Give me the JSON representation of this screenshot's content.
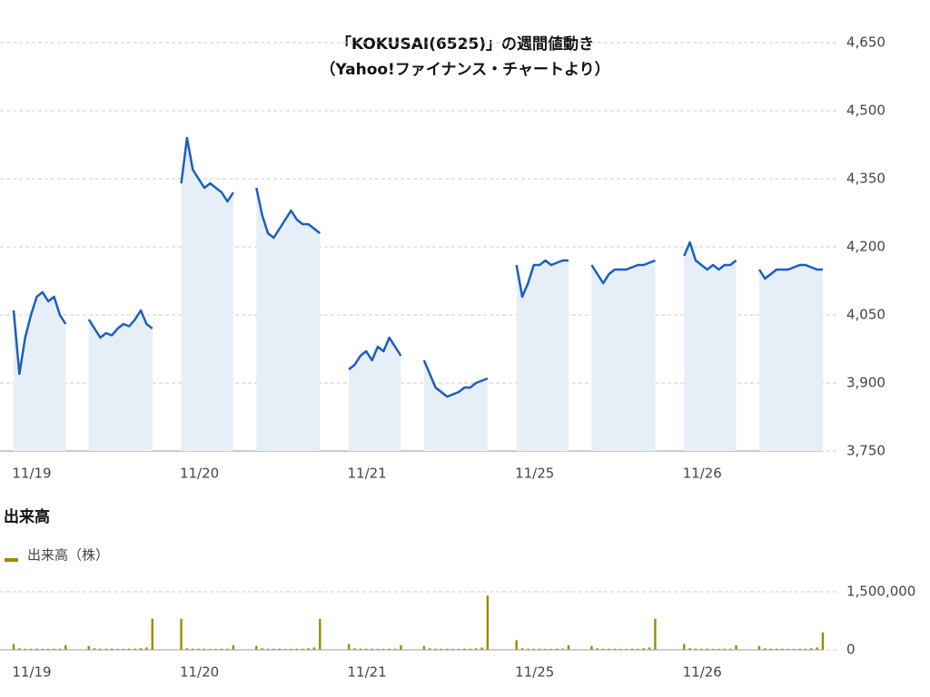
{
  "chart_data": [
    {
      "type": "area",
      "title": "「KOKUSAI(6525)」の週間値動き",
      "subtitle": "（Yahoo!ファイナンス・チャートより）",
      "color": "#1a5fc0",
      "fill": "#e6eef8",
      "grid": true,
      "ylim": [
        3750,
        4650
      ],
      "yticks": [
        {
          "value": 3750,
          "label": "3,750"
        },
        {
          "value": 3900,
          "label": "3,900"
        },
        {
          "value": 4050,
          "label": "4,050"
        },
        {
          "value": 4200,
          "label": "4,200"
        },
        {
          "value": 4350,
          "label": "4,350"
        },
        {
          "value": 4500,
          "label": "4,500"
        },
        {
          "value": 4650,
          "label": "4,650"
        }
      ],
      "categories": [
        "11/19",
        null,
        null,
        null,
        null,
        null,
        null,
        null,
        null,
        null,
        null,
        null,
        null,
        null,
        null,
        null,
        null,
        null,
        null,
        null,
        null,
        null,
        null,
        null,
        null,
        null,
        null,
        null,
        null,
        "11/20",
        null,
        null,
        null,
        null,
        null,
        null,
        null,
        null,
        null,
        null,
        null,
        null,
        null,
        null,
        null,
        null,
        null,
        null,
        null,
        null,
        null,
        null,
        null,
        null,
        null,
        null,
        null,
        null,
        "11/21",
        null,
        null,
        null,
        null,
        null,
        null,
        null,
        null,
        null,
        null,
        null,
        null,
        null,
        null,
        null,
        null,
        null,
        null,
        null,
        null,
        null,
        null,
        null,
        null,
        null,
        null,
        null,
        null,
        "11/25",
        null,
        null,
        null,
        null,
        null,
        null,
        null,
        null,
        null,
        null,
        null,
        null,
        null,
        null,
        null,
        null,
        null,
        null,
        null,
        null,
        null,
        null,
        null,
        null,
        null,
        null,
        null,
        null,
        "11/26",
        null,
        null,
        null,
        null,
        null,
        null,
        null,
        null,
        null,
        null,
        null,
        null,
        null,
        null,
        null,
        null,
        null,
        null,
        null,
        null,
        null,
        null,
        null,
        null
      ],
      "values": [
        4060,
        3920,
        4000,
        4050,
        4090,
        4100,
        4080,
        4090,
        4050,
        4030,
        null,
        null,
        null,
        4040,
        4020,
        4000,
        4010,
        4005,
        4020,
        4030,
        4025,
        4040,
        4060,
        4030,
        4020,
        null,
        null,
        null,
        null,
        4340,
        4440,
        4370,
        4350,
        4330,
        4340,
        4330,
        4320,
        4300,
        4320,
        null,
        null,
        null,
        4330,
        4270,
        4230,
        4220,
        4240,
        4260,
        4280,
        4260,
        4250,
        4250,
        4240,
        4230,
        null,
        null,
        null,
        null,
        3930,
        3940,
        3960,
        3970,
        3950,
        3980,
        3970,
        4000,
        3980,
        3960,
        null,
        null,
        null,
        3950,
        3920,
        3890,
        3880,
        3870,
        3875,
        3880,
        3890,
        3890,
        3900,
        3905,
        3910,
        null,
        null,
        null,
        null,
        4160,
        4090,
        4120,
        4160,
        4160,
        4170,
        4160,
        4165,
        4170,
        4170,
        null,
        null,
        null,
        4160,
        4140,
        4120,
        4140,
        4150,
        4150,
        4150,
        4155,
        4160,
        4160,
        4165,
        4170,
        null,
        null,
        null,
        null,
        4180,
        4210,
        4170,
        4160,
        4150,
        4160,
        4150,
        4160,
        4160,
        4170,
        null,
        null,
        null,
        4150,
        4130,
        4140,
        4150,
        4150,
        4150,
        4155,
        4160,
        4160,
        4155,
        4150,
        4150
      ]
    },
    {
      "type": "bar",
      "title": "出来高",
      "ylim": [
        0,
        1500000
      ],
      "yticks": [
        {
          "value": 0,
          "label": "0"
        },
        {
          "value": 1500000,
          "label": "1,500,000"
        }
      ],
      "grid": true,
      "categories": [
        "11/19",
        null,
        null,
        null,
        null,
        null,
        null,
        null,
        null,
        null,
        null,
        null,
        null,
        null,
        null,
        null,
        null,
        null,
        null,
        null,
        null,
        null,
        null,
        null,
        null,
        null,
        null,
        null,
        null,
        "11/20",
        null,
        null,
        null,
        null,
        null,
        null,
        null,
        null,
        null,
        null,
        null,
        null,
        null,
        null,
        null,
        null,
        null,
        null,
        null,
        null,
        null,
        null,
        null,
        null,
        null,
        null,
        null,
        null,
        "11/21",
        null,
        null,
        null,
        null,
        null,
        null,
        null,
        null,
        null,
        null,
        null,
        null,
        null,
        null,
        null,
        null,
        null,
        null,
        null,
        null,
        null,
        null,
        null,
        null,
        null,
        null,
        null,
        null,
        "11/25",
        null,
        null,
        null,
        null,
        null,
        null,
        null,
        null,
        null,
        null,
        null,
        null,
        null,
        null,
        null,
        null,
        null,
        null,
        null,
        null,
        null,
        null,
        null,
        null,
        null,
        null,
        null,
        null,
        "11/26",
        null,
        null,
        null,
        null,
        null,
        null,
        null,
        null,
        null,
        null,
        null,
        null,
        null,
        null,
        null,
        null,
        null,
        null,
        null,
        null,
        null,
        null,
        null,
        null
      ],
      "series": [
        {
          "name": "出来高（株）",
          "color": "#9a8a00",
          "values": [
            150000,
            40000,
            30000,
            30000,
            30000,
            25000,
            25000,
            30000,
            30000,
            120000,
            null,
            null,
            null,
            100000,
            40000,
            30000,
            30000,
            30000,
            25000,
            25000,
            30000,
            30000,
            40000,
            60000,
            800000,
            null,
            null,
            null,
            null,
            800000,
            40000,
            30000,
            30000,
            30000,
            25000,
            25000,
            30000,
            30000,
            120000,
            null,
            null,
            null,
            100000,
            40000,
            30000,
            30000,
            30000,
            25000,
            25000,
            30000,
            30000,
            40000,
            60000,
            800000,
            null,
            null,
            null,
            null,
            150000,
            40000,
            30000,
            30000,
            30000,
            25000,
            25000,
            30000,
            30000,
            120000,
            null,
            null,
            null,
            100000,
            40000,
            30000,
            30000,
            30000,
            25000,
            25000,
            30000,
            30000,
            40000,
            60000,
            1400000,
            null,
            null,
            null,
            null,
            250000,
            40000,
            30000,
            30000,
            30000,
            25000,
            25000,
            30000,
            30000,
            120000,
            null,
            null,
            null,
            100000,
            40000,
            30000,
            30000,
            30000,
            25000,
            25000,
            30000,
            30000,
            40000,
            60000,
            800000,
            null,
            null,
            null,
            null,
            150000,
            40000,
            30000,
            30000,
            30000,
            25000,
            25000,
            30000,
            30000,
            120000,
            null,
            null,
            null,
            100000,
            40000,
            30000,
            30000,
            30000,
            25000,
            25000,
            30000,
            30000,
            40000,
            60000,
            450000
          ]
        }
      ]
    }
  ]
}
